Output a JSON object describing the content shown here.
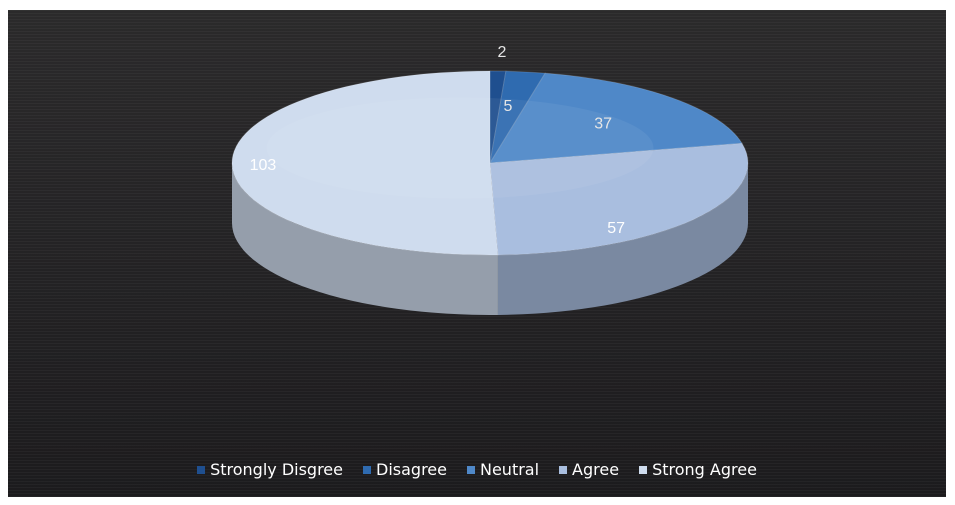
{
  "chart_data": {
    "type": "pie",
    "style": "3d",
    "categories": [
      "Strongly Disgree",
      "Disagree",
      "Neutral",
      "Agree",
      "Strong Agree"
    ],
    "values": [
      2,
      5,
      37,
      57,
      103
    ],
    "series": [
      {
        "name": "Strongly Disgree",
        "value": 2,
        "color": "#1f4f8f"
      },
      {
        "name": "Disagree",
        "value": 5,
        "color": "#2f6bb0"
      },
      {
        "name": "Neutral",
        "value": 37,
        "color": "#4f88c8"
      },
      {
        "name": "Agree",
        "value": 57,
        "color": "#a9bedf"
      },
      {
        "name": "Strong Agree",
        "value": 103,
        "color": "#cfdcee"
      }
    ],
    "data_labels": [
      "2",
      "5",
      "37",
      "57",
      "103"
    ],
    "legend_position": "bottom",
    "title": ""
  }
}
